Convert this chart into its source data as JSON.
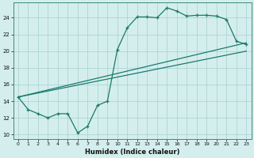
{
  "title": "",
  "xlabel": "Humidex (Indice chaleur)",
  "ylabel": "",
  "bg_color": "#d4eeee",
  "grid_color": "#aed4d4",
  "line_color": "#1a7a6a",
  "xlim": [
    -0.5,
    23.5
  ],
  "ylim": [
    9.5,
    25.8
  ],
  "xticks": [
    0,
    1,
    2,
    3,
    4,
    5,
    6,
    7,
    8,
    9,
    10,
    11,
    12,
    13,
    14,
    15,
    16,
    17,
    18,
    19,
    20,
    21,
    22,
    23
  ],
  "yticks": [
    10,
    12,
    14,
    16,
    18,
    20,
    22,
    24
  ],
  "line1_x": [
    0,
    1,
    2,
    3,
    4,
    5,
    6,
    7,
    8,
    9,
    10,
    11,
    12,
    13,
    14,
    15,
    16,
    17,
    18,
    19,
    20,
    21,
    22,
    23
  ],
  "line1_y": [
    14.5,
    13.0,
    12.5,
    12.0,
    12.5,
    12.5,
    10.2,
    11.0,
    13.5,
    14.0,
    20.2,
    22.8,
    24.1,
    24.1,
    24.0,
    25.2,
    24.8,
    24.2,
    24.3,
    24.3,
    24.2,
    23.8,
    21.2,
    20.8
  ],
  "line2_x": [
    0,
    23
  ],
  "line2_y": [
    14.5,
    21.0
  ],
  "line3_x": [
    0,
    23
  ],
  "line3_y": [
    14.5,
    20.0
  ],
  "figwidth": 3.2,
  "figheight": 2.0,
  "dpi": 100
}
